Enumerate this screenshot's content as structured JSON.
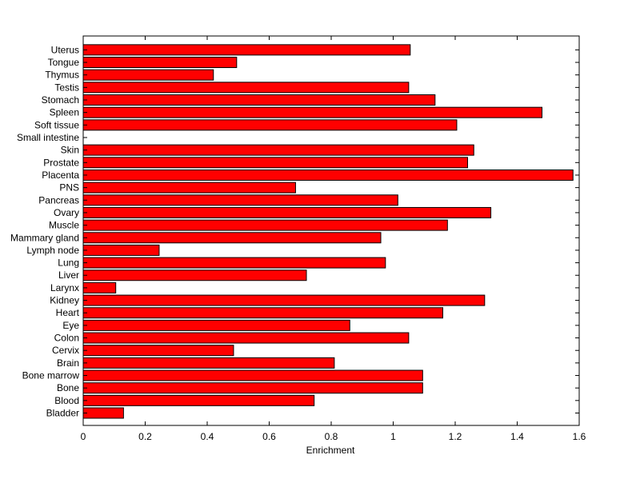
{
  "chart_data": {
    "type": "bar",
    "orientation": "horizontal",
    "title": "",
    "xlabel": "Enrichment",
    "ylabel": "",
    "xlim": [
      0,
      1.6
    ],
    "xticks": [
      "0",
      "0.2",
      "0.4",
      "0.6",
      "0.8",
      "1",
      "1.2",
      "1.4",
      "1.6"
    ],
    "grid": false,
    "bar_color": "#ff0000",
    "categories": [
      "Bladder",
      "Blood",
      "Bone",
      "Bone marrow",
      "Brain",
      "Cervix",
      "Colon",
      "Eye",
      "Heart",
      "Kidney",
      "Larynx",
      "Liver",
      "Lung",
      "Lymph node",
      "Mammary gland",
      "Muscle",
      "Ovary",
      "Pancreas",
      "PNS",
      "Placenta",
      "Prostate",
      "Skin",
      "Small intestine",
      "Soft tissue",
      "Spleen",
      "Stomach",
      "Testis",
      "Thymus",
      "Tongue",
      "Uterus"
    ],
    "values": [
      0.13,
      0.745,
      1.095,
      1.095,
      0.81,
      0.485,
      1.05,
      0.86,
      1.16,
      1.295,
      0.105,
      0.72,
      0.975,
      0.245,
      0.96,
      1.175,
      1.315,
      1.015,
      0.685,
      1.58,
      1.24,
      1.26,
      0,
      1.205,
      1.48,
      1.135,
      1.05,
      0.42,
      0.495,
      1.055
    ]
  }
}
